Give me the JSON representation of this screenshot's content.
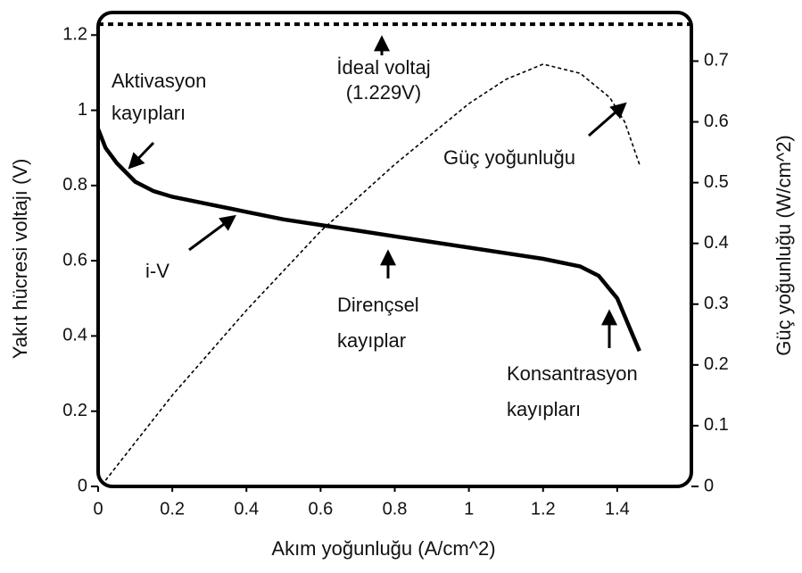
{
  "chart_data": {
    "type": "line",
    "xlabel": "Akım yoğunluğu (A/cm^2)",
    "ylabel": "Yakıt hücresi voltajı (V)",
    "y2label": "Güç yoğunluğu (W/cm^2)",
    "xlim": [
      0,
      1.6
    ],
    "xticks": [
      0,
      0.2,
      0.4,
      0.6,
      0.8,
      1.0,
      1.2,
      1.4
    ],
    "ylim": [
      0,
      1.26
    ],
    "yticks": [
      0,
      0.2,
      0.4,
      0.6,
      0.8,
      1.0,
      1.2
    ],
    "y2lim": [
      0,
      0.78
    ],
    "y2ticks": [
      0,
      0.1,
      0.2,
      0.3,
      0.4,
      0.5,
      0.6,
      0.7
    ],
    "ideal_voltage": 1.229,
    "series": [
      {
        "name": "i-V",
        "color": "#000000",
        "x": [
          0,
          0.02,
          0.05,
          0.1,
          0.15,
          0.2,
          0.3,
          0.4,
          0.5,
          0.6,
          0.7,
          0.8,
          0.9,
          1.0,
          1.1,
          1.2,
          1.3,
          1.35,
          1.4,
          1.43,
          1.46
        ],
        "values": [
          0.95,
          0.9,
          0.86,
          0.81,
          0.785,
          0.77,
          0.75,
          0.73,
          0.71,
          0.695,
          0.68,
          0.665,
          0.65,
          0.635,
          0.62,
          0.605,
          0.585,
          0.56,
          0.5,
          0.43,
          0.36
        ]
      },
      {
        "name": "Güç yoğunluğu",
        "color": "#000000",
        "axis": "y2",
        "x": [
          0.02,
          0.2,
          0.4,
          0.6,
          0.8,
          1.0,
          1.1,
          1.2,
          1.3,
          1.38,
          1.42,
          1.46
        ],
        "values": [
          0.01,
          0.15,
          0.29,
          0.42,
          0.53,
          0.63,
          0.67,
          0.695,
          0.68,
          0.64,
          0.6,
          0.53
        ]
      }
    ],
    "annotations": [
      {
        "lines": [
          "İdeal voltaj",
          "(1.229V)"
        ]
      },
      {
        "lines": [
          "Aktivasyon",
          "kayıpları"
        ]
      },
      {
        "lines": [
          "Güç yoğunluğu"
        ]
      },
      {
        "lines": [
          "i-V"
        ]
      },
      {
        "lines": [
          "Dirençsel",
          "kayıplar"
        ]
      },
      {
        "lines": [
          "Konsantrasyon",
          "kayıpları"
        ]
      }
    ]
  }
}
